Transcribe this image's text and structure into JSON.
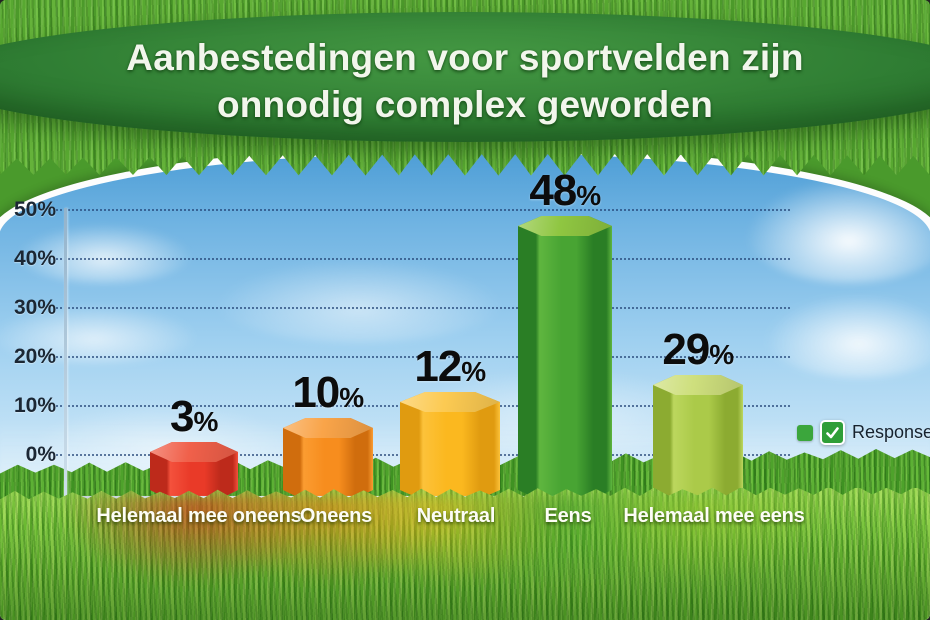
{
  "title": {
    "line1": "Aanbestedingen voor sportvelden zijn",
    "line2": "onnodig complex geworden",
    "full": "Aanbestedingen voor sportvelden zijn onnodig complex geworden"
  },
  "legend": {
    "label": "Responses",
    "checked": true,
    "swatch_color": "#3ba63c",
    "checkbox_color": "#2f9e38"
  },
  "y_axis": {
    "ticks": [
      "50%",
      "40%",
      "30%",
      "20%",
      "10%",
      "0%"
    ],
    "min": 0,
    "max": 50,
    "step": 10,
    "unit": "%"
  },
  "chart_data": {
    "type": "bar",
    "title": "Aanbestedingen voor sportvelden zijn onnodig complex geworden",
    "categories": [
      "Helemaal mee oneens",
      "Oneens",
      "Neutraal",
      "Eens",
      "Helemaal mee eens"
    ],
    "series": [
      {
        "name": "Responses",
        "values": [
          3,
          10,
          12,
          48,
          29
        ]
      }
    ],
    "value_labels": [
      "3%",
      "10%",
      "12%",
      "48%",
      "29%"
    ],
    "ylim": [
      0,
      50
    ],
    "grid": "horizontal-dotted",
    "legend_position": "right",
    "bar_style": "3d-hexagonal-prism",
    "bar_colors": [
      {
        "top": "#f0604a",
        "front": "#e93a28",
        "side": "#bd2a1b",
        "light": "#f4513c",
        "glow": "rgba(215,45,20,0.68)"
      },
      {
        "top": "#f9a449",
        "front": "#f78d1e",
        "side": "#d06d0d",
        "light": "#fb9c31",
        "glow": "rgba(238,120,15,0.62)"
      },
      {
        "top": "#fcca52",
        "front": "#fbb81f",
        "side": "#e09b10",
        "light": "#fcc23a",
        "glow": "rgba(248,185,25,0.55)"
      },
      {
        "top": "#8fc641",
        "front": "#48a433",
        "side": "#2a7e25",
        "light": "#5fb63f",
        "glow": "rgba(55,150,40,0.5)"
      },
      {
        "top": "#cedf7d",
        "front": "#abca49",
        "side": "#8cab31",
        "light": "#bcd75e",
        "glow": "rgba(150,195,45,0.55)"
      }
    ]
  }
}
